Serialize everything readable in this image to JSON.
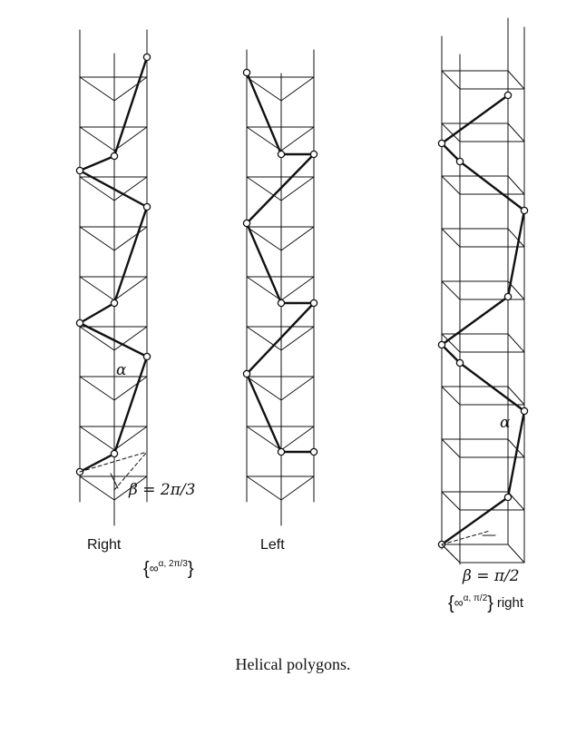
{
  "figure": {
    "caption": "Helical polygons.",
    "panels": [
      {
        "label": "Right",
        "formula_base": "∞",
        "formula_sup": "α, 2π/3",
        "beta_label": "β = 2π/3",
        "angle_label": "α"
      },
      {
        "label": "Left"
      },
      {
        "formula_base": "∞",
        "formula_sup": "α, π/2",
        "formula_suffix": "right",
        "beta_label": "β = π/2",
        "angle_label": "α"
      }
    ]
  }
}
